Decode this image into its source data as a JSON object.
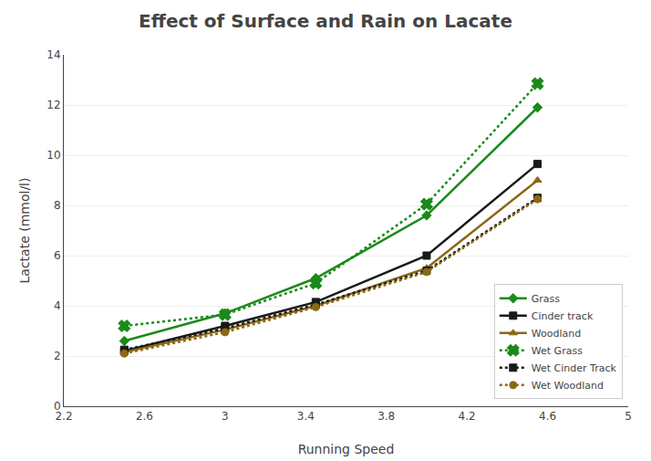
{
  "chart_data": {
    "type": "line",
    "title": "Effect of Surface and Rain on Lacate",
    "x_label": "Running Speed",
    "y_label": "Lactate (mmol/l)",
    "x": [
      2.5,
      3.0,
      3.45,
      4.0,
      4.55
    ],
    "series": [
      {
        "name": "Grass",
        "color": "#1a8a1a",
        "marker": "diamond",
        "line_style": "solid",
        "values": [
          2.6,
          3.7,
          5.1,
          7.6,
          11.9
        ]
      },
      {
        "name": "Cinder track",
        "color": "#1a1a1a",
        "marker": "square",
        "line_style": "solid",
        "values": [
          2.2,
          3.2,
          4.15,
          6.0,
          9.65
        ]
      },
      {
        "name": "Woodland",
        "color": "#8B6914",
        "marker": "triangle-up",
        "line_style": "solid",
        "values": [
          2.15,
          3.05,
          4.0,
          5.5,
          9.0
        ]
      },
      {
        "name": "Wet Grass",
        "color": "#1a8a1a",
        "marker": "x",
        "line_style": "dotted",
        "values": [
          3.2,
          3.65,
          4.9,
          8.05,
          12.85
        ]
      },
      {
        "name": "Wet Cinder Track",
        "color": "#1a1a1a",
        "marker": "square",
        "line_style": "dotted",
        "values": [
          2.25,
          3.1,
          4.05,
          5.4,
          8.3
        ]
      },
      {
        "name": "Wet Woodland",
        "color": "#8B6914",
        "marker": "circle",
        "line_style": "dotted",
        "values": [
          2.1,
          2.95,
          3.95,
          5.35,
          8.25
        ]
      }
    ],
    "xlim": [
      2.2,
      5.0
    ],
    "ylim": [
      0,
      14
    ],
    "xticks": [
      2.2,
      2.6,
      3,
      3.4,
      3.8,
      4.2,
      4.6,
      5
    ],
    "yticks": [
      0,
      2,
      4,
      6,
      8,
      10,
      12,
      14
    ],
    "grid": "y",
    "legend": "lower right"
  }
}
